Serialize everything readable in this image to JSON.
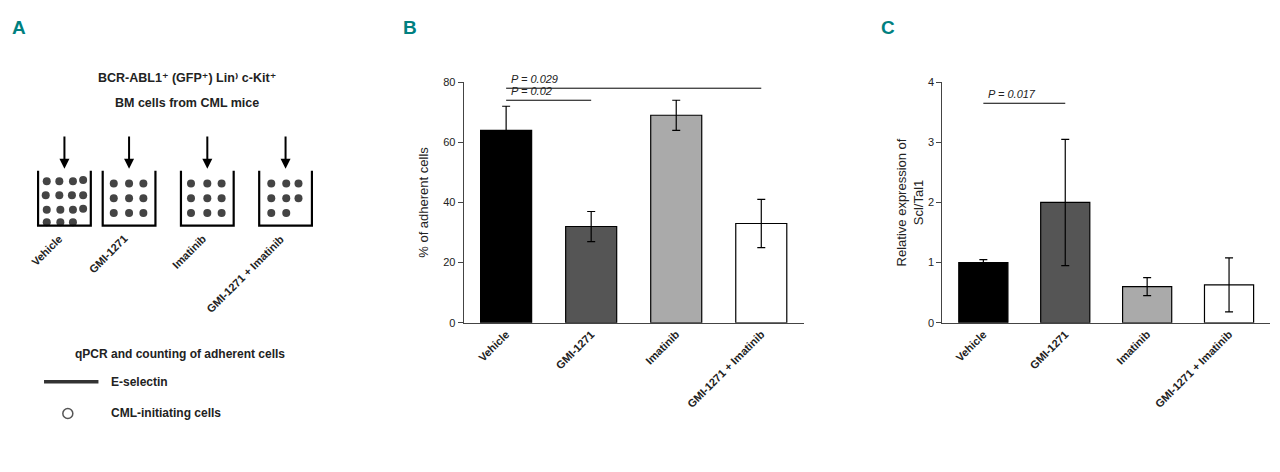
{
  "chart_data": [
    {
      "type": "schematic",
      "title": "BCR-ABL1⁺ (GFP⁺) Lin⁾ c-Kit⁺\nBM cells from CML mice",
      "categories": [
        "Vehicle",
        "GMI-1271",
        "Imatinib",
        "GMI-1271 + Imatinib"
      ],
      "annotations": [
        {
          "text": "A",
          "color": "#008080"
        },
        {
          "text": "qPCR and counting of adherent cells"
        },
        {
          "text": "E-selectin",
          "marker": "line"
        },
        {
          "text": "CML-initiating cells",
          "marker": "circle"
        }
      ]
    },
    {
      "type": "bar",
      "categories": [
        "Vehicle",
        "GMI-1271",
        "Imatinib",
        "GMI-1271 + Imatinib"
      ],
      "values": [
        64,
        32,
        69,
        33
      ],
      "errors": [
        8,
        5,
        5,
        8
      ],
      "colors": [
        "#000000",
        "#555555",
        "#aaaaaa",
        "#ffffff"
      ],
      "ylabel": "% of adherent cells",
      "ylim": [
        0,
        80
      ],
      "yticks": [
        0,
        20,
        40,
        60,
        80
      ],
      "grid": false,
      "annotations": [
        {
          "text": "B",
          "color": "#008080"
        },
        {
          "text": "P = 0.02",
          "x": [
            "Vehicle",
            "GMI-1271"
          ],
          "y": 74
        },
        {
          "text": "P = 0.029",
          "x": [
            "Vehicle",
            "GMI-1271 + Imatinib"
          ],
          "y": 78
        }
      ]
    },
    {
      "type": "bar",
      "categories": [
        "Vehicle",
        "GMI-1271",
        "Imatinib",
        "GMI-1271 + Imatinib"
      ],
      "values": [
        1.0,
        2.0,
        0.6,
        0.63
      ],
      "errors": [
        0.05,
        1.05,
        0.15,
        0.45
      ],
      "colors": [
        "#000000",
        "#555555",
        "#aaaaaa",
        "#ffffff"
      ],
      "ylabel": "Relative expression of\nScl/Tal1",
      "ylim": [
        0,
        4
      ],
      "yticks": [
        0,
        1,
        2,
        3,
        4
      ],
      "grid": false,
      "annotations": [
        {
          "text": "C",
          "color": "#008080"
        },
        {
          "text": "P = 0.017",
          "x": [
            "Vehicle",
            "GMI-1271"
          ],
          "y": 3.65
        }
      ]
    }
  ]
}
